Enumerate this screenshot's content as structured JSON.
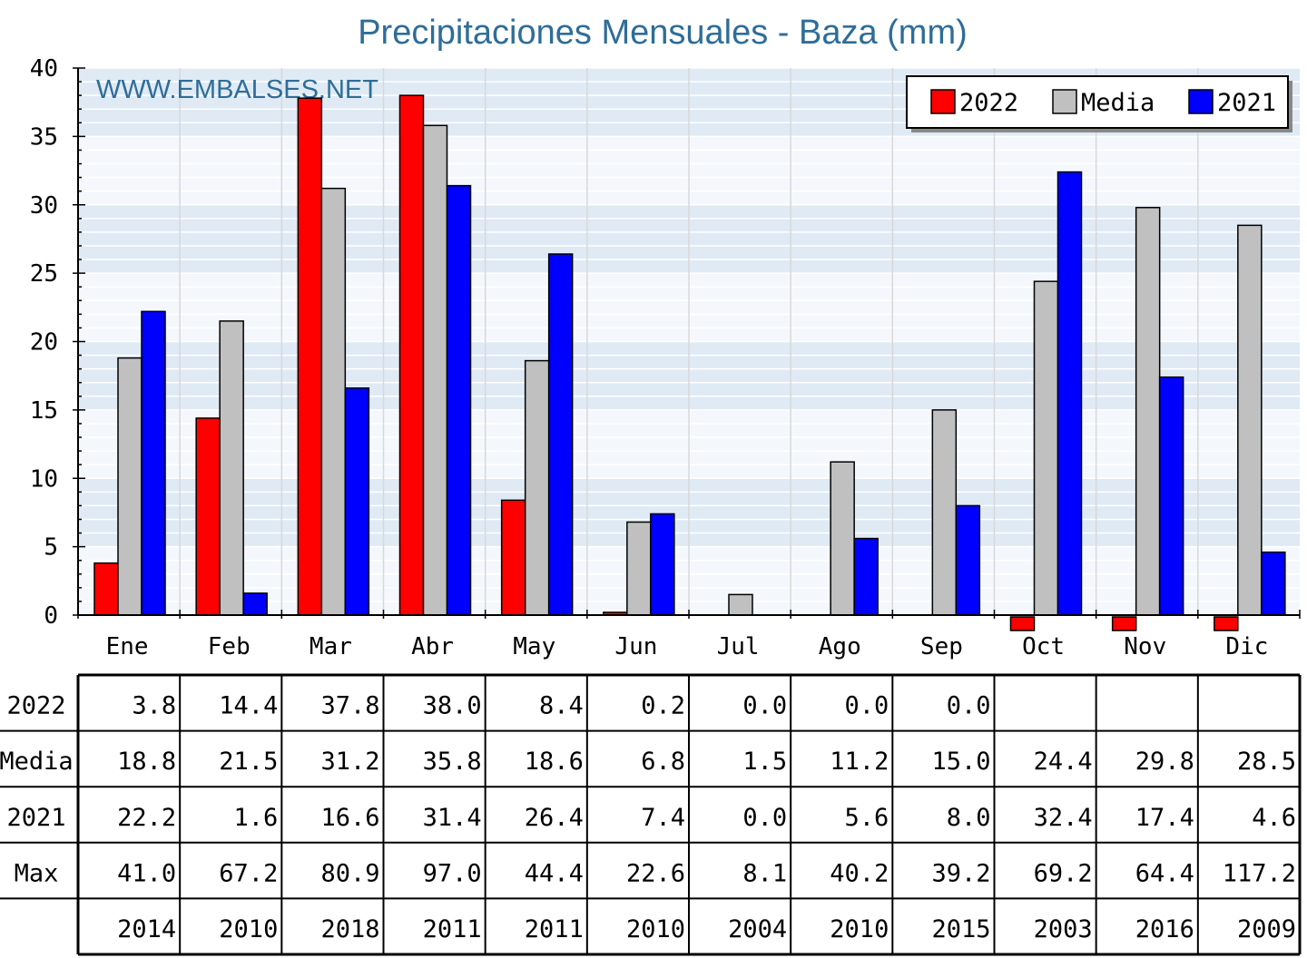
{
  "chart_data": {
    "type": "bar",
    "title": "Precipitaciones Mensuales - Baza (mm)",
    "watermark": "WWW.EMBALSES.NET",
    "categories": [
      "Ene",
      "Feb",
      "Mar",
      "Abr",
      "May",
      "Jun",
      "Jul",
      "Ago",
      "Sep",
      "Oct",
      "Nov",
      "Dic"
    ],
    "ylim": [
      0,
      40
    ],
    "yticks": [
      0,
      5,
      10,
      15,
      20,
      25,
      30,
      35,
      40
    ],
    "grid": true,
    "legend_position": "top-right",
    "series": [
      {
        "name": "2022",
        "color": "#ff0000",
        "values": [
          3.8,
          14.4,
          37.8,
          38.0,
          8.4,
          0.2,
          0.0,
          0.0,
          0.0,
          null,
          null,
          null
        ]
      },
      {
        "name": "Media",
        "color": "#c0c0c0",
        "values": [
          18.8,
          21.5,
          31.2,
          35.8,
          18.6,
          6.8,
          1.5,
          11.2,
          15.0,
          24.4,
          29.8,
          28.5
        ]
      },
      {
        "name": "2021",
        "color": "#0000ff",
        "values": [
          22.2,
          1.6,
          16.6,
          31.4,
          26.4,
          7.4,
          0.0,
          5.6,
          8.0,
          32.4,
          17.4,
          4.6
        ]
      }
    ],
    "table": {
      "rows": [
        {
          "label": "2022",
          "cells": [
            "3.8",
            "14.4",
            "37.8",
            "38.0",
            "8.4",
            "0.2",
            "0.0",
            "0.0",
            "0.0",
            "",
            "",
            ""
          ]
        },
        {
          "label": "Media",
          "cells": [
            "18.8",
            "21.5",
            "31.2",
            "35.8",
            "18.6",
            "6.8",
            "1.5",
            "11.2",
            "15.0",
            "24.4",
            "29.8",
            "28.5"
          ]
        },
        {
          "label": "2021",
          "cells": [
            "22.2",
            "1.6",
            "16.6",
            "31.4",
            "26.4",
            "7.4",
            "0.0",
            "5.6",
            "8.0",
            "32.4",
            "17.4",
            "4.6"
          ]
        },
        {
          "label": "Max",
          "cells": [
            "41.0",
            "67.2",
            "80.9",
            "97.0",
            "44.4",
            "22.6",
            "8.1",
            "40.2",
            "39.2",
            "69.2",
            "64.4",
            "117.2"
          ]
        },
        {
          "label": "",
          "cells": [
            "2014",
            "2010",
            "2018",
            "2011",
            "2011",
            "2010",
            "2004",
            "2010",
            "2015",
            "2003",
            "2016",
            "2009"
          ]
        }
      ]
    }
  }
}
